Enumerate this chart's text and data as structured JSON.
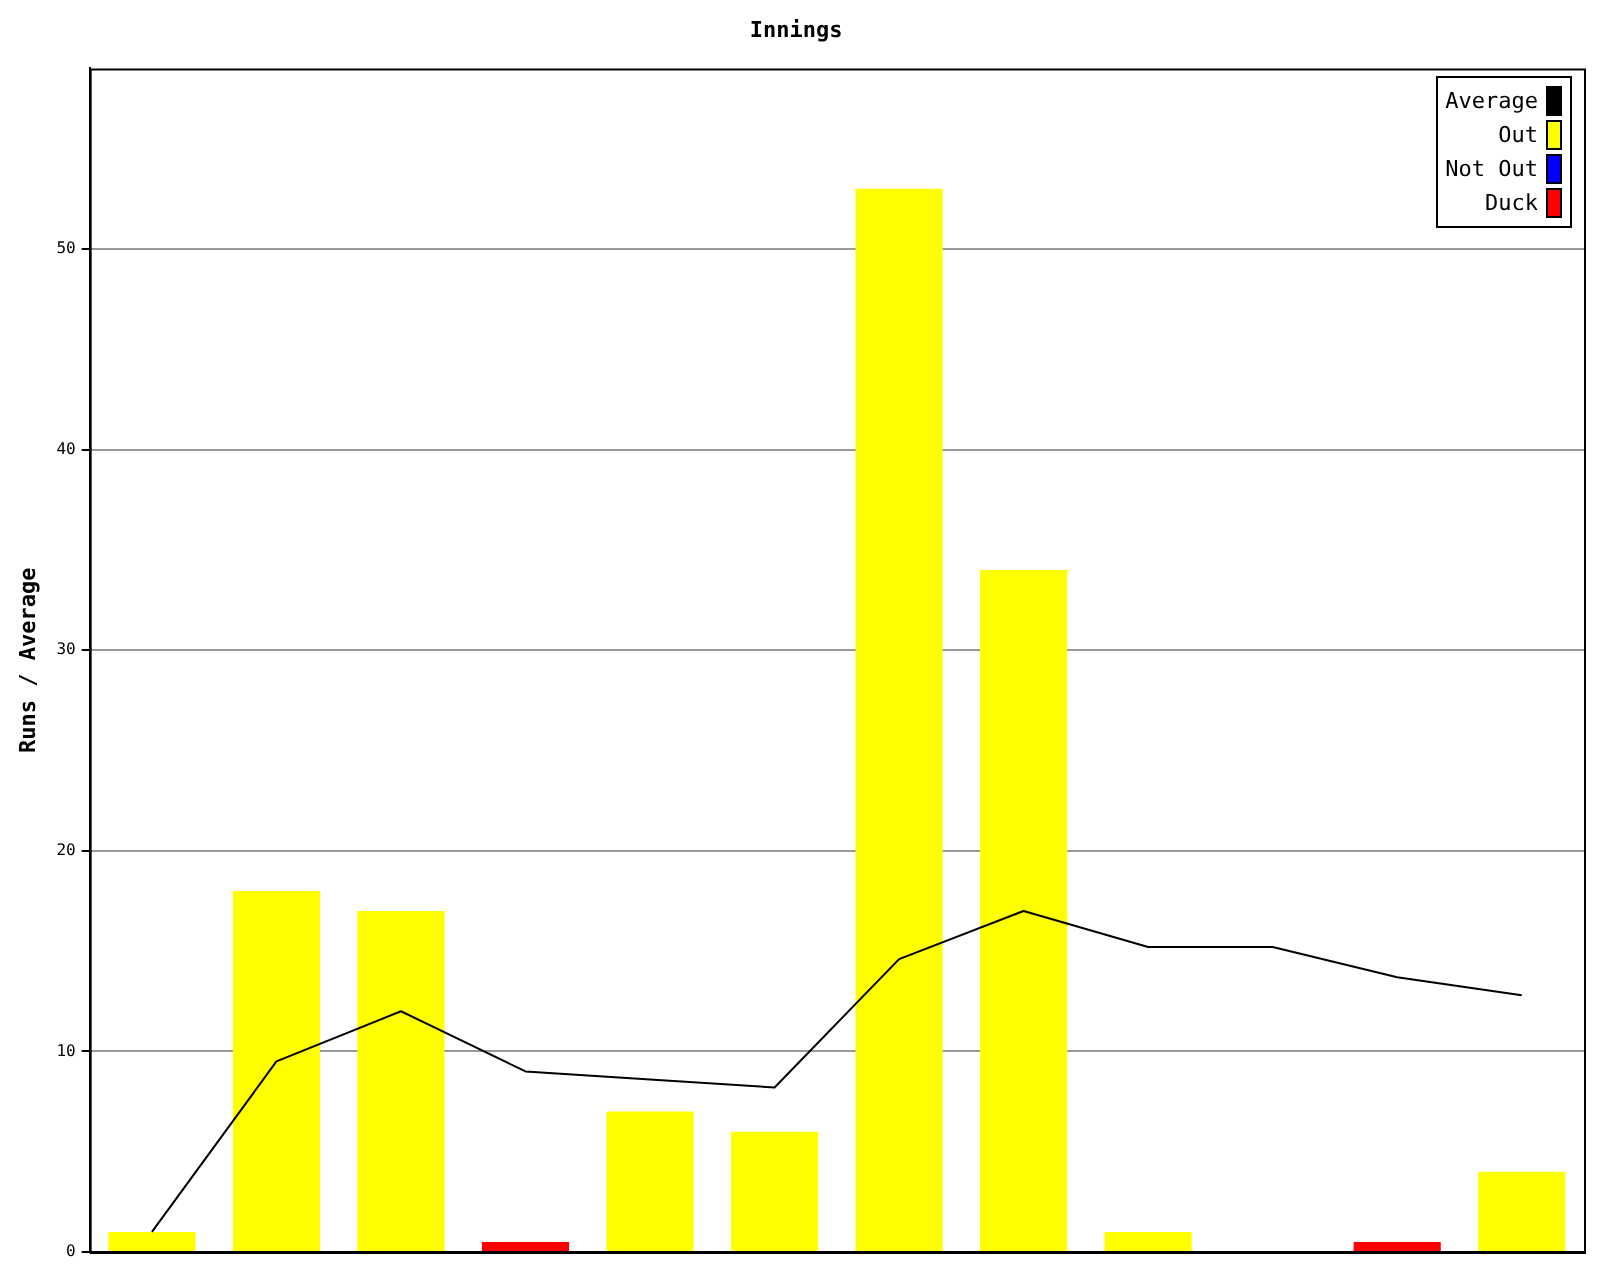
{
  "chart_data": {
    "type": "bar",
    "title": "Innings",
    "ylabel": "Runs / Average",
    "categories": [
      null,
      null,
      null,
      null,
      null,
      null,
      null,
      null,
      null,
      null,
      null,
      null
    ],
    "stacked": true,
    "series": [
      {
        "name": "Average",
        "type": "line",
        "color": "#000000",
        "values": [
          1,
          9.5,
          12,
          9,
          8.6,
          8.2,
          14.6,
          17,
          15.2,
          15.2,
          13.7,
          12.8
        ]
      },
      {
        "name": "Out",
        "color": "#ffff00",
        "values": [
          1,
          18,
          17,
          null,
          7,
          6,
          53,
          34,
          1,
          null,
          null,
          4
        ]
      },
      {
        "name": "Not Out",
        "color": "#0000ff",
        "values": [
          null,
          null,
          null,
          null,
          null,
          null,
          null,
          null,
          null,
          0,
          null,
          null
        ]
      },
      {
        "name": "Duck",
        "color": "#ff0000",
        "values": [
          null,
          null,
          null,
          0.5,
          null,
          null,
          null,
          null,
          null,
          null,
          0.5,
          null
        ]
      }
    ],
    "ylim": [
      0,
      59
    ],
    "yticks": [
      0,
      10,
      20,
      30,
      40,
      50
    ],
    "grid": "y",
    "legend": "top right",
    "tick_labels": "y",
    "marker": "none"
  }
}
